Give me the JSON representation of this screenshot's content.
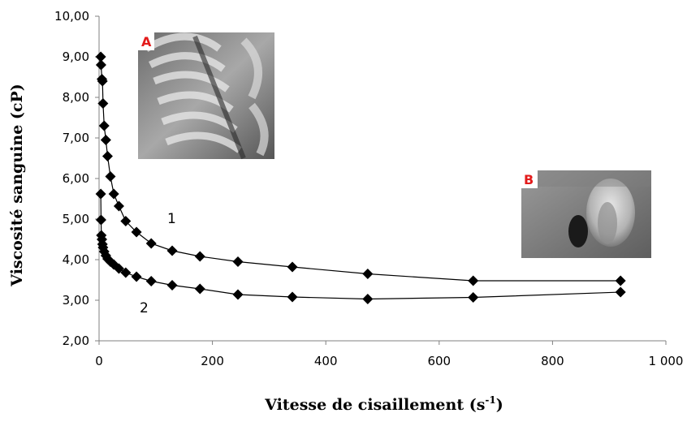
{
  "chart_data": {
    "type": "scatter",
    "xlabel_main": "Vitesse de cisaillement (s",
    "xlabel_sup": "-1",
    "xlabel_end": ")",
    "ylabel": "Viscosité sanguine (cP)",
    "xlim": [
      0,
      1000
    ],
    "ylim": [
      2,
      10
    ],
    "x_ticks": [
      "0",
      "200",
      "400",
      "600",
      "800",
      "1 000"
    ],
    "y_ticks": [
      "2,00",
      "3,00",
      "4,00",
      "5,00",
      "6,00",
      "7,00",
      "8,00",
      "9,00",
      "10,00"
    ],
    "grid": false,
    "series": [
      {
        "name": "1",
        "x": [
          3,
          3.5,
          5,
          6,
          7,
          9,
          12,
          15,
          20,
          26,
          35,
          47,
          66,
          92,
          129,
          178,
          245,
          341,
          474,
          660,
          920
        ],
        "y": [
          9.0,
          8.8,
          8.45,
          8.4,
          7.85,
          7.3,
          6.95,
          6.55,
          6.05,
          5.62,
          5.32,
          4.95,
          4.68,
          4.4,
          4.22,
          4.08,
          3.95,
          3.82,
          3.65,
          3.48,
          3.48
        ]
      },
      {
        "name": "2",
        "x": [
          3,
          3.5,
          4,
          5,
          6,
          7,
          9,
          12,
          15,
          20,
          26,
          35,
          47,
          66,
          92,
          129,
          178,
          245,
          341,
          474,
          660,
          920
        ],
        "y": [
          5.62,
          4.98,
          4.6,
          4.5,
          4.38,
          4.3,
          4.2,
          4.1,
          4.02,
          3.95,
          3.88,
          3.78,
          3.68,
          3.58,
          3.47,
          3.37,
          3.28,
          3.14,
          3.08,
          3.03,
          3.07,
          3.2
        ]
      }
    ],
    "insets": [
      {
        "tag": "A",
        "description_icon": "erythrocyte-rouleaux-micrograph"
      },
      {
        "tag": "B",
        "description_icon": "single-erythrocyte-micrograph"
      }
    ]
  }
}
